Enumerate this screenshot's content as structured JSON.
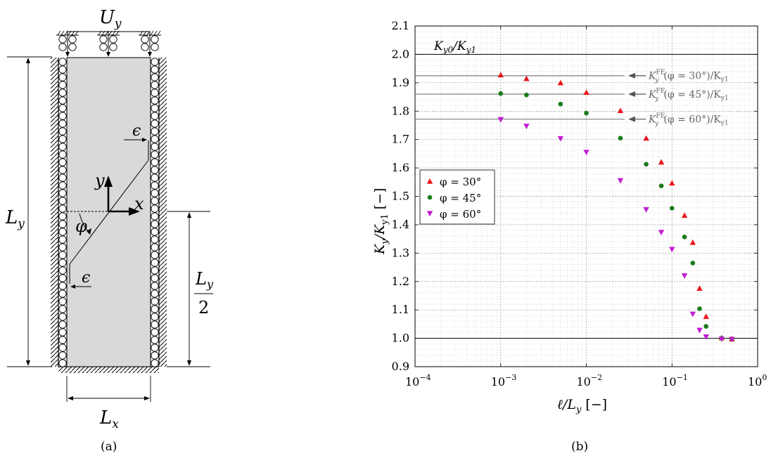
{
  "panel_a": {
    "caption": "(a)",
    "labels": {
      "uy_main": "U",
      "uy_sub": "y",
      "ly_main": "L",
      "ly_sub": "y",
      "lx_main": "L",
      "lx_sub": "x",
      "half_num_main": "L",
      "half_num_sub": "y",
      "half_den": "2",
      "eps_top": "ϵ",
      "eps_bottom": "ϵ",
      "axis_x": "x",
      "axis_y": "y",
      "angle": "φ"
    }
  },
  "panel_b": {
    "caption": "(b)",
    "ref_label_main": "K",
    "ref_label_sub1": "y0",
    "ref_label_slash": "/K",
    "ref_label_sub2": "y1",
    "arrow_labels": [
      {
        "pre": "K",
        "sup": "FE",
        "sub": "y",
        "post": "(φ = 30°)/K",
        "post_sub": "y1"
      },
      {
        "pre": "K",
        "sup": "FE",
        "sub": "y",
        "post": "(φ = 45°)/K",
        "post_sub": "y1"
      },
      {
        "pre": "K",
        "sup": "FE",
        "sub": "y",
        "post": "(φ = 60°)/K",
        "post_sub": "y1"
      }
    ],
    "xlabel": {
      "main": "ℓ/L",
      "sub": "y",
      "unit": "[−]"
    },
    "ylabel": {
      "main": "K",
      "sub1": "y",
      "mid": "/K",
      "sub2": "y1",
      "unit": "[−]"
    }
  },
  "chart_data": {
    "type": "scatter",
    "title": "",
    "xscale": "log",
    "xlim": [
      0.0001,
      1
    ],
    "ylim": [
      0.9,
      2.1
    ],
    "x_ticks": [
      {
        "value": 0.0001,
        "base": "10",
        "exp": "−4"
      },
      {
        "value": 0.001,
        "base": "10",
        "exp": "−3"
      },
      {
        "value": 0.01,
        "base": "10",
        "exp": "−2"
      },
      {
        "value": 0.1,
        "base": "10",
        "exp": "−1"
      },
      {
        "value": 1,
        "base": "10",
        "exp": "0"
      }
    ],
    "y_ticks": [
      "0.9",
      "1.0",
      "1.1",
      "1.2",
      "1.3",
      "1.4",
      "1.5",
      "1.6",
      "1.7",
      "1.8",
      "1.9",
      "2.0",
      "2.1"
    ],
    "grid": true,
    "legend_position": "center-left",
    "reference_lines": [
      {
        "y": 2.0,
        "label": "Ky0/Ky1"
      },
      {
        "y": 1.0,
        "label": ""
      }
    ],
    "fe_lines": [
      {
        "y": 1.925,
        "label": "φ = 30°"
      },
      {
        "y": 1.86,
        "label": "φ = 45°"
      },
      {
        "y": 1.772,
        "label": "φ = 60°"
      }
    ],
    "series": [
      {
        "name": "φ = 30°",
        "marker": "triangle-up",
        "color": "#e8161b",
        "x": [
          0.001,
          0.002,
          0.005,
          0.01,
          0.025,
          0.05,
          0.075,
          0.1,
          0.14,
          0.175,
          0.21,
          0.25,
          0.38,
          0.5
        ],
        "y": [
          1.928,
          1.915,
          1.9,
          1.866,
          1.802,
          1.705,
          1.621,
          1.547,
          1.433,
          1.338,
          1.176,
          1.077,
          1.002,
          0.998
        ]
      },
      {
        "name": "φ = 45°",
        "marker": "circle",
        "color": "#1b7a1b",
        "x": [
          0.001,
          0.002,
          0.005,
          0.01,
          0.025,
          0.05,
          0.075,
          0.1,
          0.14,
          0.175,
          0.21,
          0.25,
          0.38,
          0.5
        ],
        "y": [
          1.862,
          1.857,
          1.825,
          1.793,
          1.705,
          1.613,
          1.537,
          1.458,
          1.357,
          1.265,
          1.104,
          1.042,
          1.0,
          0.998
        ]
      },
      {
        "name": "φ = 60°",
        "marker": "triangle-down",
        "color": "#c21bd2",
        "x": [
          0.001,
          0.002,
          0.005,
          0.01,
          0.025,
          0.05,
          0.075,
          0.1,
          0.14,
          0.175,
          0.21,
          0.25,
          0.38,
          0.5
        ],
        "y": [
          1.77,
          1.747,
          1.703,
          1.655,
          1.555,
          1.453,
          1.373,
          1.313,
          1.22,
          1.085,
          1.028,
          1.005,
          0.997,
          0.996
        ]
      }
    ]
  }
}
